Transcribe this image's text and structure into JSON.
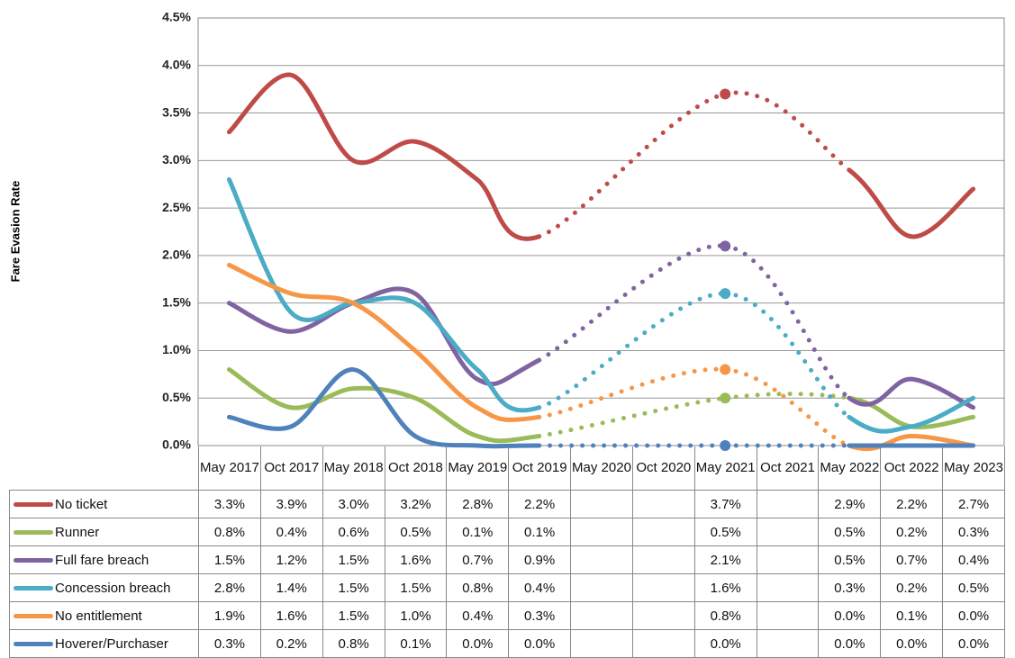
{
  "chart_data": {
    "type": "line",
    "y_axis_label": "Fare Evasion Rate",
    "categories": [
      "May 2017",
      "Oct 2017",
      "May 2018",
      "Oct 2018",
      "May 2019",
      "Oct 2019",
      "May 2020",
      "Oct 2020",
      "May 2021",
      "Oct 2021",
      "May 2022",
      "Oct 2022",
      "May 2023"
    ],
    "series": [
      {
        "name": "No ticket",
        "color": "#be4b48",
        "values": [
          3.3,
          3.9,
          3.0,
          3.2,
          2.8,
          2.2,
          null,
          null,
          3.7,
          null,
          2.9,
          2.2,
          2.7
        ],
        "value_labels": [
          "3.3%",
          "3.9%",
          "3.0%",
          "3.2%",
          "2.8%",
          "2.2%",
          null,
          null,
          "3.7%",
          null,
          "2.9%",
          "2.2%",
          "2.7%"
        ]
      },
      {
        "name": "Runner",
        "color": "#9bbb59",
        "values": [
          0.8,
          0.4,
          0.6,
          0.5,
          0.1,
          0.1,
          null,
          null,
          0.5,
          null,
          0.5,
          0.2,
          0.3
        ],
        "value_labels": [
          "0.8%",
          "0.4%",
          "0.6%",
          "0.5%",
          "0.1%",
          "0.1%",
          null,
          null,
          "0.5%",
          null,
          "0.5%",
          "0.2%",
          "0.3%"
        ]
      },
      {
        "name": "Full fare breach",
        "color": "#8064a2",
        "values": [
          1.5,
          1.2,
          1.5,
          1.6,
          0.7,
          0.9,
          null,
          null,
          2.1,
          null,
          0.5,
          0.7,
          0.4
        ],
        "value_labels": [
          "1.5%",
          "1.2%",
          "1.5%",
          "1.6%",
          "0.7%",
          "0.9%",
          null,
          null,
          "2.1%",
          null,
          "0.5%",
          "0.7%",
          "0.4%"
        ]
      },
      {
        "name": "Concession breach",
        "color": "#4bacc6",
        "values": [
          2.8,
          1.4,
          1.5,
          1.5,
          0.8,
          0.4,
          null,
          null,
          1.6,
          null,
          0.3,
          0.2,
          0.5
        ],
        "value_labels": [
          "2.8%",
          "1.4%",
          "1.5%",
          "1.5%",
          "0.8%",
          "0.4%",
          null,
          null,
          "1.6%",
          null,
          "0.3%",
          "0.2%",
          "0.5%"
        ]
      },
      {
        "name": "No entitlement",
        "color": "#f79646",
        "values": [
          1.9,
          1.6,
          1.5,
          1.0,
          0.4,
          0.3,
          null,
          null,
          0.8,
          null,
          0.0,
          0.1,
          0.0
        ],
        "value_labels": [
          "1.9%",
          "1.6%",
          "1.5%",
          "1.0%",
          "0.4%",
          "0.3%",
          null,
          null,
          "0.8%",
          null,
          "0.0%",
          "0.1%",
          "0.0%"
        ]
      },
      {
        "name": "Hoverer/Purchaser",
        "color": "#4f81bd",
        "values": [
          0.3,
          0.2,
          0.8,
          0.1,
          0.0,
          0.0,
          null,
          null,
          0.0,
          null,
          0.0,
          0.0,
          0.0
        ],
        "value_labels": [
          "0.3%",
          "0.2%",
          "0.8%",
          "0.1%",
          "0.0%",
          "0.0%",
          null,
          null,
          "0.0%",
          null,
          "0.0%",
          "0.0%",
          "0.0%"
        ]
      }
    ],
    "ylim": [
      0,
      4.5
    ],
    "yticks": [
      {
        "value": 0,
        "label": "0.0%"
      },
      {
        "value": 0.5,
        "label": "0.5%"
      },
      {
        "value": 1,
        "label": "1.0%"
      },
      {
        "value": 1.5,
        "label": "1.5%"
      },
      {
        "value": 2,
        "label": "2.0%"
      },
      {
        "value": 2.5,
        "label": "2.5%"
      },
      {
        "value": 3,
        "label": "3.0%"
      },
      {
        "value": 3.5,
        "label": "3.5%"
      },
      {
        "value": 4,
        "label": "4.0%"
      },
      {
        "value": 4.5,
        "label": "4.5%"
      }
    ],
    "grid": true
  }
}
